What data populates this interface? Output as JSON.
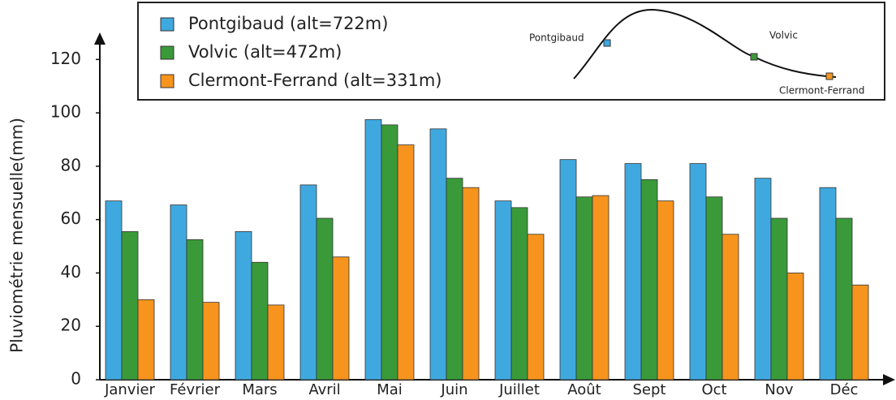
{
  "chart_data": {
    "type": "bar",
    "y_label": "Pluviométrie mensuelle(mm)",
    "categories": [
      "Janvier",
      "Février",
      "Mars",
      "Avril",
      "Mai",
      "Juin",
      "Juillet",
      "Août",
      "Sept",
      "Oct",
      "Nov",
      "Déc"
    ],
    "series": [
      {
        "name": "Pontgibaud (alt=722m)",
        "color": "#3fa9df",
        "values": [
          67,
          65.5,
          55.5,
          73,
          97.5,
          94,
          67,
          82.5,
          81,
          81,
          75.5,
          72
        ]
      },
      {
        "name": "Volvic (alt=472m)",
        "color": "#3a9a3a",
        "values": [
          55.5,
          52.5,
          44,
          60.5,
          95.5,
          75.5,
          64.5,
          68.5,
          75,
          68.5,
          60.5,
          60.5
        ]
      },
      {
        "name": "Clermont-Ferrand (alt=331m)",
        "color": "#f7941d",
        "values": [
          30,
          29,
          28,
          46,
          88,
          72,
          54.5,
          69,
          67,
          54.5,
          40,
          35.5
        ]
      }
    ],
    "inset_labels": [
      "Pontgibaud",
      "Volvic",
      "Clermont-Ferrand"
    ],
    "ylim": [
      0,
      128
    ],
    "yticks": [
      0,
      20,
      40,
      60,
      80,
      100,
      120
    ],
    "grid": false
  }
}
